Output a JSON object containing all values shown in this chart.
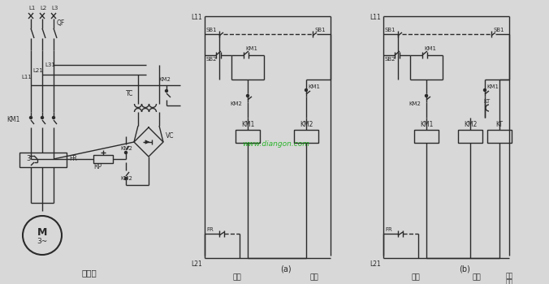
{
  "bg": "#d8d8d8",
  "lc": "#2a2a2a",
  "lw": 1.0,
  "wm": "www.diangon.com",
  "wm_c": "#00aa00",
  "main_lbl": "主电路",
  "run_lbl": "运行",
  "brake_lbl": "制动",
  "brake_time1": "制动",
  "brake_time2": "时间",
  "sub_a": "(a)",
  "sub_b": "(b)"
}
